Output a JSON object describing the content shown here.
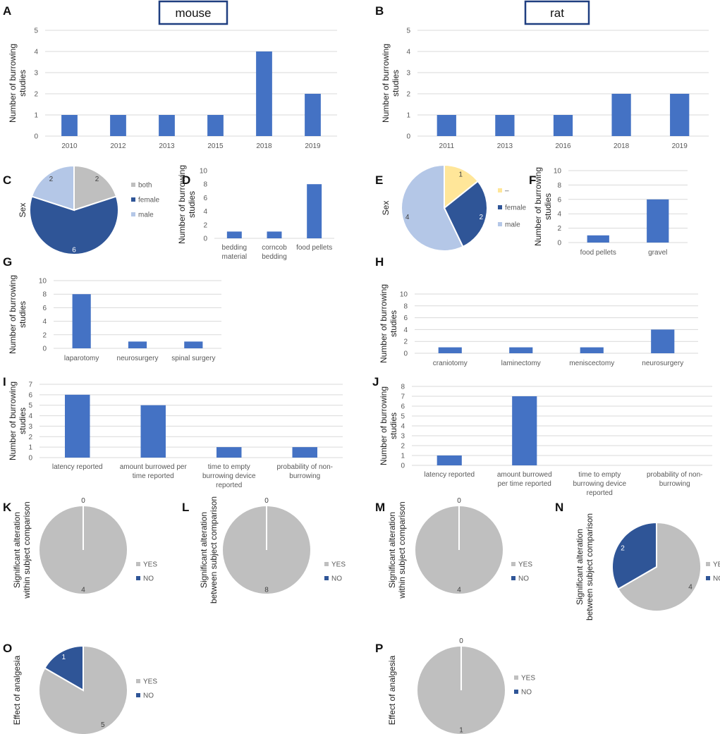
{
  "figure": {
    "species_labels": {
      "mouse": "mouse",
      "rat": "rat"
    },
    "colors": {
      "bar": "#4472C4",
      "grey": "#BFBFBF",
      "dark_blue": "#2F5597",
      "light_blue": "#B4C7E7",
      "yellow": "#FFE699",
      "box_border": "#1F3E80"
    }
  },
  "chart_data": [
    {
      "panel": "A",
      "type": "bar",
      "ylabel": "Number of burrowing studies",
      "ylim": [
        0,
        5
      ],
      "yticks": [
        0,
        1,
        2,
        3,
        4,
        5
      ],
      "grid": true,
      "categories": [
        "2010",
        "2012",
        "2013",
        "2015",
        "2018",
        "2019"
      ],
      "values": [
        1,
        1,
        1,
        1,
        4,
        2
      ]
    },
    {
      "panel": "B",
      "type": "bar",
      "ylabel": "Number of burrowing studies",
      "ylim": [
        0,
        5
      ],
      "yticks": [
        0,
        1,
        2,
        3,
        4,
        5
      ],
      "grid": true,
      "categories": [
        "2011",
        "2013",
        "2016",
        "2018",
        "2019"
      ],
      "values": [
        1,
        1,
        1,
        2,
        2
      ]
    },
    {
      "panel": "C",
      "type": "pie",
      "ylabel": "Sex",
      "slices": [
        {
          "label": "both",
          "value": 2,
          "color": "#BFBFBF"
        },
        {
          "label": "female",
          "value": 6,
          "color": "#2F5597"
        },
        {
          "label": "male",
          "value": 2,
          "color": "#B4C7E7"
        }
      ]
    },
    {
      "panel": "D",
      "type": "bar",
      "ylabel": "Number of burrowing studies",
      "ylim": [
        0,
        10
      ],
      "yticks": [
        0,
        2,
        4,
        6,
        8,
        10
      ],
      "grid": false,
      "categories": [
        "bedding material",
        "corncob bedding",
        "food pellets"
      ],
      "values": [
        1,
        1,
        8
      ]
    },
    {
      "panel": "E",
      "type": "pie",
      "ylabel": "Sex",
      "slices": [
        {
          "label": "–",
          "value": 1,
          "color": "#FFE699"
        },
        {
          "label": "female",
          "value": 2,
          "color": "#2F5597"
        },
        {
          "label": "male",
          "value": 4,
          "color": "#B4C7E7"
        }
      ]
    },
    {
      "panel": "F",
      "type": "bar",
      "ylabel": "Number of burrowing studies",
      "ylim": [
        0,
        10
      ],
      "yticks": [
        0,
        2,
        4,
        6,
        8,
        10
      ],
      "grid": true,
      "categories": [
        "food pellets",
        "gravel"
      ],
      "values": [
        1,
        6
      ]
    },
    {
      "panel": "G",
      "type": "bar",
      "ylabel": "Number of burrowing studies",
      "ylim": [
        0,
        10
      ],
      "yticks": [
        0,
        2,
        4,
        6,
        8,
        10
      ],
      "grid": true,
      "categories": [
        "laparotomy",
        "neurosurgery",
        "spinal surgery"
      ],
      "values": [
        8,
        1,
        1
      ]
    },
    {
      "panel": "H",
      "type": "bar",
      "ylabel": "Number of burrowing studies",
      "ylim": [
        0,
        10
      ],
      "yticks": [
        0,
        2,
        4,
        6,
        8,
        10
      ],
      "grid": true,
      "categories": [
        "craniotomy",
        "laminectomy",
        "meniscectomy",
        "neurosurgery"
      ],
      "values": [
        1,
        1,
        1,
        4
      ]
    },
    {
      "panel": "I",
      "type": "bar",
      "ylabel": "Number of burrowing studies",
      "ylim": [
        0,
        7
      ],
      "yticks": [
        0,
        1,
        2,
        3,
        4,
        5,
        6,
        7
      ],
      "grid": true,
      "categories": [
        "latency reported",
        "amount burrowed per time reported",
        "time to empty burrowing device reported",
        "probability of non-burrowing"
      ],
      "values": [
        6,
        5,
        1,
        1
      ]
    },
    {
      "panel": "J",
      "type": "bar",
      "ylabel": "Number of burrowing studies",
      "ylim": [
        0,
        8
      ],
      "yticks": [
        0,
        1,
        2,
        3,
        4,
        5,
        6,
        7,
        8
      ],
      "grid": true,
      "categories": [
        "latency reported",
        "amount burrowed per time reported",
        "time to empty burrowing device reported",
        "probability of non-burrowing"
      ],
      "values": [
        1,
        7,
        0,
        0
      ]
    },
    {
      "panel": "K",
      "type": "pie",
      "ylabel": "Significant alteration within subject comparison",
      "slices": [
        {
          "label": "YES",
          "value": 4,
          "color": "#BFBFBF"
        },
        {
          "label": "NO",
          "value": 0,
          "color": "#2F5597"
        }
      ]
    },
    {
      "panel": "L",
      "type": "pie",
      "ylabel": "Significant alteration between subject comparison",
      "slices": [
        {
          "label": "YES",
          "value": 8,
          "color": "#BFBFBF"
        },
        {
          "label": "NO",
          "value": 0,
          "color": "#2F5597"
        }
      ]
    },
    {
      "panel": "M",
      "type": "pie",
      "ylabel": "Significant alteration within subject comparison",
      "slices": [
        {
          "label": "YES",
          "value": 4,
          "color": "#BFBFBF"
        },
        {
          "label": "NO",
          "value": 0,
          "color": "#2F5597"
        }
      ]
    },
    {
      "panel": "N",
      "type": "pie",
      "ylabel": "Significant alteration between subject comparison",
      "slices": [
        {
          "label": "YES",
          "value": 4,
          "color": "#BFBFBF"
        },
        {
          "label": "NO",
          "value": 2,
          "color": "#2F5597"
        }
      ]
    },
    {
      "panel": "O",
      "type": "pie",
      "ylabel": "Effect of analgesia",
      "slices": [
        {
          "label": "YES",
          "value": 5,
          "color": "#BFBFBF"
        },
        {
          "label": "NO",
          "value": 1,
          "color": "#2F5597"
        }
      ]
    },
    {
      "panel": "P",
      "type": "pie",
      "ylabel": "Effect of analgesia",
      "slices": [
        {
          "label": "YES",
          "value": 1,
          "color": "#BFBFBF"
        },
        {
          "label": "NO",
          "value": 0,
          "color": "#2F5597"
        }
      ]
    }
  ]
}
